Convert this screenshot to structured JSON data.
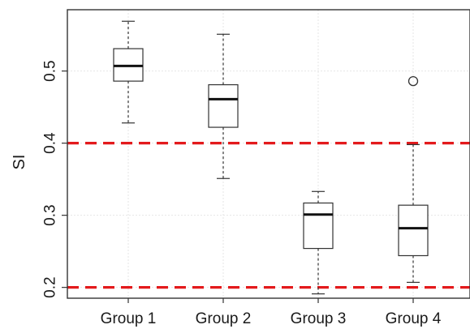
{
  "chart_data": {
    "type": "box",
    "ylabel": "SI",
    "xlabel": "",
    "ylim": [
      0.185,
      0.585
    ],
    "yticks": [
      "0.2",
      "0.3",
      "0.4",
      "0.5"
    ],
    "grid": true,
    "categories": [
      "Group 1",
      "Group 2",
      "Group 3",
      "Group 4"
    ],
    "boxes": [
      {
        "min": 0.428,
        "q1": 0.486,
        "median": 0.507,
        "q3": 0.531,
        "max": 0.569,
        "outliers": []
      },
      {
        "min": 0.351,
        "q1": 0.422,
        "median": 0.461,
        "q3": 0.481,
        "max": 0.551,
        "outliers": []
      },
      {
        "min": 0.191,
        "q1": 0.254,
        "median": 0.301,
        "q3": 0.317,
        "max": 0.333,
        "outliers": []
      },
      {
        "min": 0.207,
        "q1": 0.244,
        "median": 0.282,
        "q3": 0.314,
        "max": 0.398,
        "outliers": [
          0.486
        ]
      }
    ],
    "reference_lines": [
      {
        "y": 0.4,
        "color": "#e31a1c",
        "style": "dashed"
      },
      {
        "y": 0.2,
        "color": "#e31a1c",
        "style": "dashed"
      }
    ]
  }
}
